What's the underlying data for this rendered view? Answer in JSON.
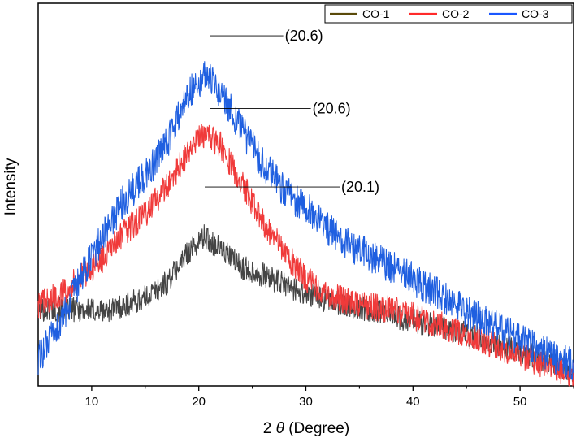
{
  "chart_data": {
    "type": "line",
    "title": "",
    "xlabel_prefix": "2 ",
    "xlabel_symbol": "θ",
    "xlabel_suffix": " (Degree)",
    "ylabel": "Intensity",
    "xlim": [
      5,
      55
    ],
    "ylim": [
      0,
      100
    ],
    "x_ticks": [
      10,
      20,
      30,
      40,
      50
    ],
    "legend_position": "top-right",
    "series": [
      {
        "name": "CO-1",
        "legend_color": "#5a4a0a",
        "line_color": "#444444",
        "points": [
          [
            5,
            20
          ],
          [
            7,
            20
          ],
          [
            9,
            20
          ],
          [
            11,
            19.5
          ],
          [
            13,
            21
          ],
          [
            15,
            23
          ],
          [
            17,
            27
          ],
          [
            19,
            35
          ],
          [
            20.5,
            39
          ],
          [
            22,
            36
          ],
          [
            24,
            31
          ],
          [
            26,
            29
          ],
          [
            28,
            26.5
          ],
          [
            30,
            24
          ],
          [
            33,
            21.5
          ],
          [
            36,
            20
          ],
          [
            40,
            17
          ],
          [
            44,
            14.5
          ],
          [
            48,
            11
          ],
          [
            52,
            7
          ],
          [
            55,
            4
          ]
        ]
      },
      {
        "name": "CO-2",
        "legend_color": "#ff2a2a",
        "line_color": "#f03a3a",
        "points": [
          [
            5,
            21
          ],
          [
            7,
            24
          ],
          [
            9,
            28.5
          ],
          [
            11,
            33
          ],
          [
            13,
            40
          ],
          [
            15,
            45
          ],
          [
            17,
            52
          ],
          [
            19,
            61
          ],
          [
            20.5,
            66
          ],
          [
            22,
            63
          ],
          [
            24,
            53
          ],
          [
            26,
            43
          ],
          [
            28,
            35
          ],
          [
            30,
            28
          ],
          [
            32,
            24
          ],
          [
            35,
            21
          ],
          [
            38,
            20
          ],
          [
            42,
            16.5
          ],
          [
            46,
            12.5
          ],
          [
            50,
            8
          ],
          [
            53,
            4.5
          ],
          [
            55,
            2.5
          ]
        ]
      },
      {
        "name": "CO-3",
        "legend_color": "#1a57ff",
        "line_color": "#1f5fe0",
        "points": [
          [
            5,
            7
          ],
          [
            7,
            16
          ],
          [
            9,
            28
          ],
          [
            11,
            39
          ],
          [
            13,
            48.5
          ],
          [
            15,
            55
          ],
          [
            17,
            63
          ],
          [
            19,
            76.5
          ],
          [
            20.6,
            81.5
          ],
          [
            22,
            77
          ],
          [
            24,
            67
          ],
          [
            26,
            58
          ],
          [
            28,
            51
          ],
          [
            30,
            46.5
          ],
          [
            33,
            38.5
          ],
          [
            36,
            34
          ],
          [
            40,
            28
          ],
          [
            44,
            21
          ],
          [
            48,
            15
          ],
          [
            52,
            9
          ],
          [
            55,
            5.5
          ]
        ]
      }
    ],
    "annotations": [
      {
        "label": "(20.6)",
        "series": "CO-3",
        "x": 20.6,
        "y": 91.5
      },
      {
        "label": "(20.6)",
        "series": "CO-2",
        "x": 20.6,
        "y": 72.5
      },
      {
        "label": "(20.1)",
        "series": "CO-1",
        "x": 20.1,
        "y": 52
      }
    ]
  }
}
